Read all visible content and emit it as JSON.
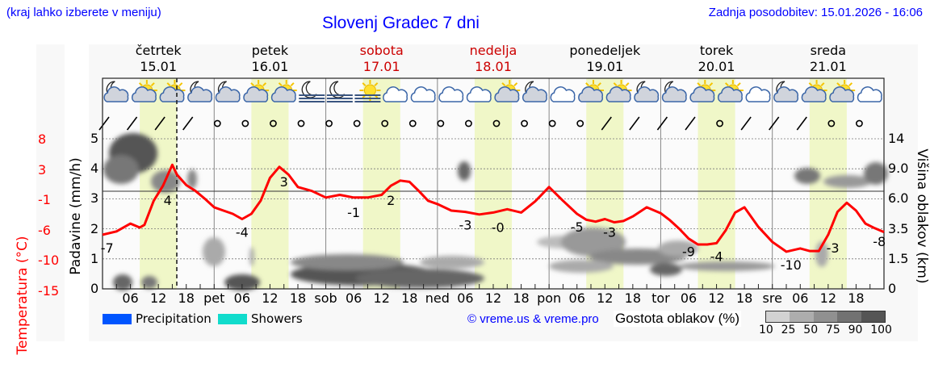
{
  "header": {
    "menu_hint": "(kraj lahko izberete v meniju)",
    "title": "Slovenj Gradec 7 dni",
    "last_update": "Zadnja posodobitev: 15.01.2026 - 16:06"
  },
  "days": [
    {
      "name": "četrtek",
      "date": "15.01",
      "weekend": false
    },
    {
      "name": "petek",
      "date": "16.01",
      "weekend": false
    },
    {
      "name": "sobota",
      "date": "17.01",
      "weekend": true
    },
    {
      "name": "nedelja",
      "date": "18.01",
      "weekend": true
    },
    {
      "name": "ponedeljek",
      "date": "19.01",
      "weekend": false
    },
    {
      "name": "torek",
      "date": "20.01",
      "weekend": false
    },
    {
      "name": "sreda",
      "date": "21.01",
      "weekend": false
    }
  ],
  "axes": {
    "left_temp_label": "Temperatura (°C)",
    "left_precip_label": "Padavine (mm/h)",
    "right_label": "Višina oblakov (km)",
    "temp_ticks": [
      "8",
      "3",
      "-1",
      "-6",
      "-10",
      "-15"
    ],
    "precip_ticks": [
      "5",
      "4",
      "3",
      "2",
      "1",
      "0"
    ],
    "height_ticks": [
      "14",
      "9.0",
      "6.0",
      "3.5",
      "1.5",
      "0"
    ],
    "x_ticks": [
      "06",
      "12",
      "18",
      "pet",
      "06",
      "12",
      "18",
      "sob",
      "06",
      "12",
      "18",
      "ned",
      "06",
      "12",
      "18",
      "pon",
      "06",
      "12",
      "18",
      "tor",
      "06",
      "12",
      "18",
      "sre",
      "06",
      "12",
      "18"
    ]
  },
  "legend": {
    "precip_label": "Precipitation",
    "precip_color": "#0055ff",
    "showers_label": "Showers",
    "showers_color": "#11dccc",
    "credit": "© vreme.us & vreme.pro",
    "cloud_density_label": "Gostota oblakov (%)",
    "cloud_density_ticks": [
      "10",
      "25",
      "50",
      "75",
      "90",
      "100"
    ],
    "cloud_density_colors": [
      "#d2d2d2",
      "#adadad",
      "#909090",
      "#727272",
      "#555555"
    ]
  },
  "icons": [
    "moon-cloud",
    "sun-cloud",
    "sun-cloud",
    "moon-cloud",
    "moon-cloud",
    "sun-cloud",
    "sun-cloud",
    "fog-moon",
    "fog-moon",
    "fog-sun",
    "cloud",
    "cloud",
    "cloud",
    "cloud",
    "sun-cloud",
    "moon-cloud",
    "cloud",
    "sun-cloud",
    "sun-cloud",
    "moon-cloud",
    "moon-cloud",
    "sun-cloud",
    "sun-cloud",
    "cloud",
    "moon-cloud",
    "sun-cloud",
    "sun-cloud",
    "cloud"
  ],
  "colors": {
    "temperature_line": "#ff0000",
    "day_band": "#f0f7c8",
    "weekend_text": "#cc0000",
    "link": "#0000ff"
  },
  "chart_data": {
    "type": "line",
    "title": "Slovenj Gradec 7 dni",
    "xlabel": "",
    "ylabel": "Temperatura (°C)",
    "x_range_hours": [
      0,
      168
    ],
    "ylim_temp": [
      -15,
      8
    ],
    "ylim_precip": [
      0,
      5
    ],
    "ylim_cloud_height_km": [
      0,
      14
    ],
    "current_time_marker_hour": 16,
    "series": [
      {
        "name": "Temperatura",
        "unit": "°C",
        "x_hours": [
          0,
          3,
          6,
          8,
          9,
          11,
          13,
          15,
          16,
          18,
          20,
          22,
          24,
          26,
          28,
          30,
          32,
          34,
          36,
          38,
          40,
          42,
          45,
          48,
          51,
          54,
          57,
          60,
          62,
          64,
          66,
          68,
          70,
          72,
          75,
          78,
          81,
          84,
          87,
          90,
          93,
          96,
          99,
          102,
          104,
          106,
          108,
          110,
          112,
          114,
          117,
          120,
          122,
          124,
          126,
          128,
          130,
          132,
          134,
          136,
          138,
          141,
          144,
          147,
          150,
          152,
          154,
          156,
          158,
          160,
          162,
          164,
          166,
          168
        ],
        "values": [
          -6.7,
          -6.2,
          -5,
          -5.6,
          -5.2,
          -1.5,
          0.8,
          4,
          2.5,
          0.9,
          0,
          -1.2,
          -2.5,
          -3,
          -3.5,
          -4.3,
          -3.5,
          -1.5,
          2,
          3.7,
          2.5,
          0.6,
          0,
          -1,
          -0.6,
          -1,
          -1,
          -0.6,
          0.8,
          1.6,
          1.4,
          0,
          -1.5,
          -2,
          -3,
          -3.2,
          -3.6,
          -3.3,
          -2.8,
          -3.3,
          -1.6,
          0.6,
          -1.5,
          -3.5,
          -4.4,
          -4.7,
          -4.3,
          -4.8,
          -4.6,
          -3.9,
          -2.5,
          -3.4,
          -4.5,
          -5.8,
          -7.3,
          -8.2,
          -8.2,
          -8,
          -6,
          -3.3,
          -2.5,
          -5.5,
          -7.8,
          -9.3,
          -8.8,
          -9.2,
          -9.2,
          -6.7,
          -3.2,
          -1.8,
          -3,
          -5,
          -5.7,
          -6.3
        ],
        "labels": [
          {
            "hour": 1,
            "text": "-7"
          },
          {
            "hour": 14,
            "text": "4"
          },
          {
            "hour": 30,
            "text": "-4"
          },
          {
            "hour": 39,
            "text": "3"
          },
          {
            "hour": 54,
            "text": "-1"
          },
          {
            "hour": 62,
            "text": "2"
          },
          {
            "hour": 78,
            "text": "-3"
          },
          {
            "hour": 85,
            "text": "-0"
          },
          {
            "hour": 102,
            "text": "-5"
          },
          {
            "hour": 109,
            "text": "-3"
          },
          {
            "hour": 126,
            "text": "-9"
          },
          {
            "hour": 132,
            "text": "-4"
          },
          {
            "hour": 148,
            "text": "-10"
          },
          {
            "hour": 157,
            "text": "-3"
          },
          {
            "hour": 167,
            "text": "-8"
          }
        ]
      },
      {
        "name": "Padavine",
        "unit": "mm/h",
        "values_note": "no precipitation bars shown",
        "values": []
      }
    ],
    "day_bands_hours": [
      [
        8,
        16
      ],
      [
        32,
        40
      ],
      [
        56,
        64
      ],
      [
        80,
        88
      ],
      [
        104,
        112
      ],
      [
        128,
        136
      ],
      [
        152,
        160
      ]
    ],
    "legend_position": "bottom",
    "grid": true
  }
}
